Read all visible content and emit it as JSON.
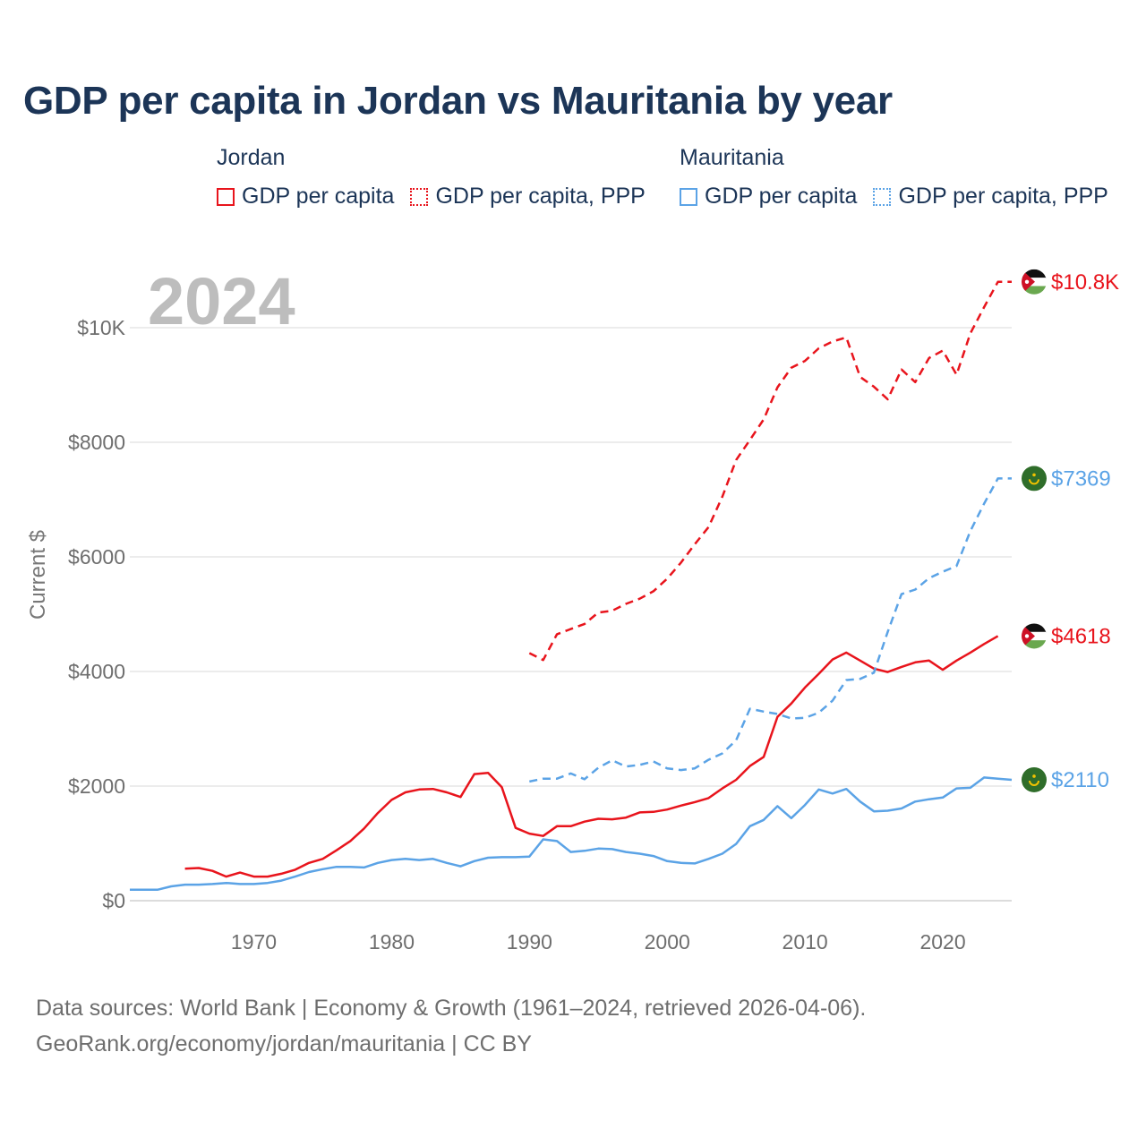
{
  "title": "GDP per capita in Jordan vs Mauritania by year",
  "legend": {
    "groups": [
      {
        "country": "Jordan",
        "color": "#e8141c",
        "items": [
          "GDP per capita",
          "GDP per capita, PPP"
        ]
      },
      {
        "country": "Mauritania",
        "color": "#5ba3e6",
        "items": [
          "GDP per capita",
          "GDP per capita, PPP"
        ]
      }
    ]
  },
  "footer": {
    "line1": "Data sources: World Bank | Economy & Growth (1961–2024, retrieved 2026-04-06).",
    "line2": "GeoRank.org/economy/jordan/mauritania | CC BY"
  },
  "chart_data": {
    "type": "line",
    "title": "GDP per capita in Jordan vs Mauritania by year",
    "year_watermark": "2024",
    "xlabel": "",
    "ylabel": "Current $",
    "xlim": [
      1961,
      2025
    ],
    "ylim": [
      0,
      11000
    ],
    "x_ticks": [
      1970,
      1980,
      1990,
      2000,
      2010,
      2020
    ],
    "y_ticks": [
      {
        "value": 0,
        "label": "$0"
      },
      {
        "value": 2000,
        "label": "$2000"
      },
      {
        "value": 4000,
        "label": "$4000"
      },
      {
        "value": 6000,
        "label": "$6000"
      },
      {
        "value": 8000,
        "label": "$8000"
      },
      {
        "value": 10000,
        "label": "$10K"
      }
    ],
    "grid": true,
    "series": [
      {
        "name": "Jordan GDP per capita",
        "country": "Jordan",
        "color": "#e8141c",
        "dash": false,
        "end_label": "$4618",
        "start_year": 1965,
        "values": [
          560,
          570,
          520,
          420,
          490,
          420,
          420,
          470,
          540,
          660,
          730,
          880,
          1040,
          1260,
          1530,
          1760,
          1890,
          1940,
          1950,
          1890,
          1810,
          2210,
          2230,
          1980,
          1270,
          1170,
          1130,
          1300,
          1300,
          1380,
          1430,
          1420,
          1450,
          1540,
          1550,
          1590,
          1660,
          1720,
          1790,
          1960,
          2110,
          2350,
          2510,
          3210,
          3440,
          3720,
          3960,
          4210,
          4330,
          4190,
          4050,
          3990,
          4080,
          4160,
          4190,
          4030,
          4190,
          4330,
          4480,
          4618
        ]
      },
      {
        "name": "Jordan GDP per capita, PPP",
        "country": "Jordan",
        "color": "#e8141c",
        "dash": true,
        "end_label": "$10.8K",
        "start_year": 1990,
        "values": [
          4320,
          4200,
          4650,
          4740,
          4830,
          5030,
          5060,
          5180,
          5270,
          5400,
          5620,
          5900,
          6220,
          6520,
          7050,
          7690,
          8040,
          8400,
          8960,
          9300,
          9420,
          9640,
          9760,
          9830,
          9140,
          8970,
          8750,
          9270,
          9050,
          9470,
          9600,
          9180,
          9900,
          10360,
          10800,
          10800
        ]
      },
      {
        "name": "Mauritania GDP per capita",
        "country": "Mauritania",
        "color": "#5ba3e6",
        "dash": false,
        "end_label": "$2110",
        "start_year": 1961,
        "values": [
          190,
          190,
          190,
          250,
          280,
          280,
          290,
          310,
          290,
          290,
          310,
          350,
          420,
          500,
          550,
          590,
          590,
          580,
          660,
          710,
          730,
          710,
          730,
          660,
          600,
          690,
          750,
          760,
          760,
          770,
          1070,
          1040,
          850,
          870,
          910,
          900,
          850,
          820,
          780,
          690,
          660,
          650,
          730,
          820,
          990,
          1300,
          1410,
          1650,
          1440,
          1670,
          1940,
          1870,
          1950,
          1730,
          1560,
          1570,
          1610,
          1730,
          1770,
          1800,
          1960,
          1970,
          2150,
          2130,
          2110
        ]
      },
      {
        "name": "Mauritania GDP per capita, PPP",
        "country": "Mauritania",
        "color": "#5ba3e6",
        "dash": true,
        "end_label": "$7369",
        "start_year": 1990,
        "values": [
          2080,
          2130,
          2130,
          2220,
          2120,
          2320,
          2450,
          2340,
          2370,
          2430,
          2310,
          2280,
          2310,
          2460,
          2570,
          2800,
          3350,
          3300,
          3260,
          3180,
          3190,
          3280,
          3490,
          3850,
          3870,
          3980,
          4690,
          5350,
          5430,
          5630,
          5740,
          5840,
          6450,
          6930,
          7369,
          7369
        ]
      }
    ]
  }
}
